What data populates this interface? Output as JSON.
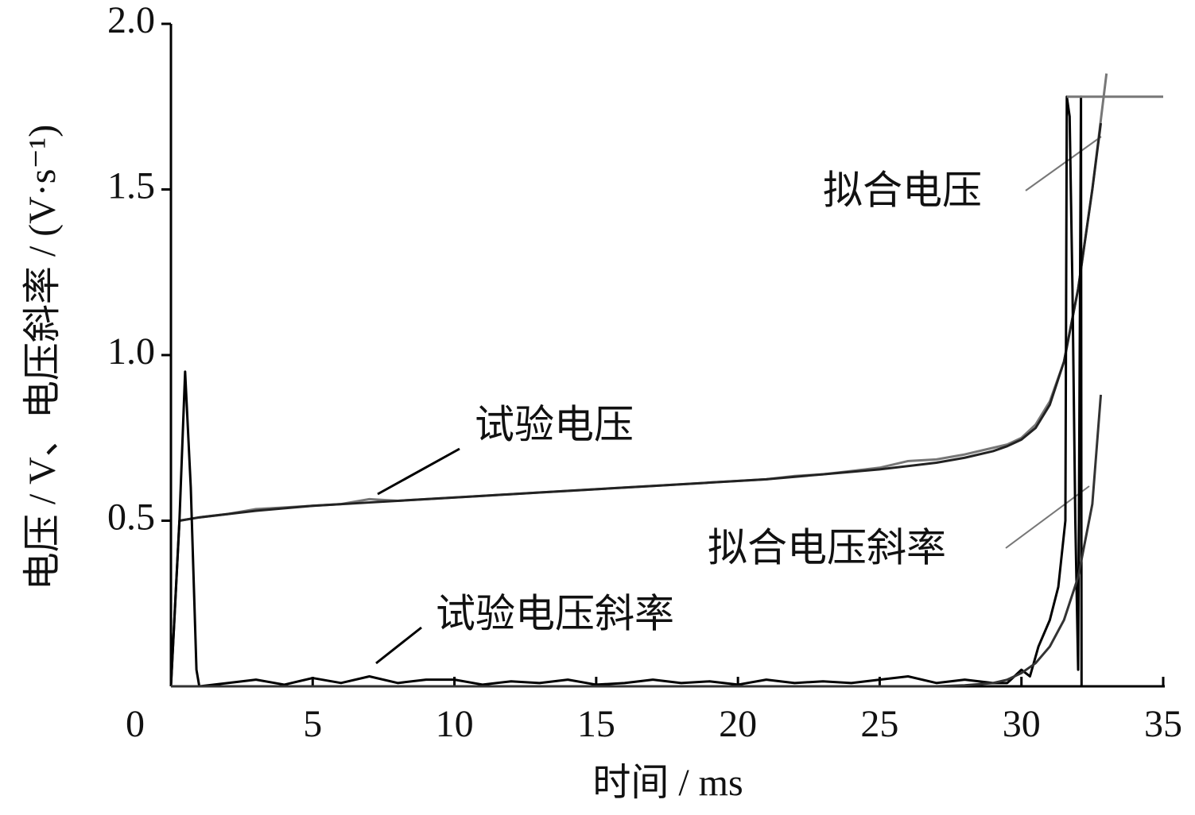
{
  "chart_data": {
    "type": "line",
    "xlabel": "时间 / ms",
    "ylabel": "电压 / V、电压斜率 / (V·s⁻¹)",
    "xlim": [
      0,
      35
    ],
    "ylim": [
      0,
      2
    ],
    "xticks": [
      0,
      5,
      10,
      15,
      20,
      25,
      30,
      35
    ],
    "yticks": [
      0.5,
      {
        "value": 1,
        "label": "1.0"
      },
      1.5,
      {
        "value": 2,
        "label": "2.0"
      }
    ],
    "series": [
      {
        "name": "试验电压",
        "color": "#777777",
        "x": [
          0.3,
          1,
          2,
          3,
          4,
          5,
          6,
          7,
          8,
          9,
          10,
          11,
          12,
          13,
          14,
          15,
          16,
          17,
          18,
          19,
          20,
          21,
          22,
          23,
          24,
          25,
          26,
          27,
          28,
          29,
          29.5,
          30,
          30.5,
          31,
          31.5,
          32,
          32.5,
          33
        ],
        "values": [
          0.5,
          0.51,
          0.52,
          0.535,
          0.54,
          0.545,
          0.55,
          0.565,
          0.56,
          0.565,
          0.57,
          0.575,
          0.58,
          0.585,
          0.59,
          0.595,
          0.6,
          0.605,
          0.61,
          0.615,
          0.62,
          0.625,
          0.635,
          0.64,
          0.65,
          0.66,
          0.68,
          0.685,
          0.7,
          0.72,
          0.73,
          0.75,
          0.79,
          0.86,
          0.98,
          1.2,
          1.5,
          1.85
        ]
      },
      {
        "name": "拟合电压",
        "color": "#222222",
        "x": [
          0,
          0.3,
          1,
          3,
          5,
          7,
          9,
          11,
          13,
          15,
          17,
          19,
          21,
          23,
          25,
          27,
          28,
          29,
          29.5,
          30,
          30.5,
          31,
          31.5,
          32,
          32.5,
          32.8
        ],
        "values": [
          0,
          0.5,
          0.51,
          0.53,
          0.545,
          0.555,
          0.565,
          0.575,
          0.585,
          0.595,
          0.605,
          0.615,
          0.625,
          0.64,
          0.655,
          0.675,
          0.69,
          0.71,
          0.725,
          0.745,
          0.78,
          0.85,
          0.98,
          1.2,
          1.5,
          1.7
        ]
      },
      {
        "name": "试验电压斜率",
        "color": "#000000",
        "x": [
          0,
          0.3,
          0.5,
          0.7,
          0.9,
          1,
          2,
          3,
          4,
          5,
          6,
          7,
          8,
          9,
          10,
          11,
          12,
          13,
          14,
          15,
          16,
          17,
          18,
          19,
          20,
          21,
          22,
          23,
          24,
          25,
          26,
          27,
          28,
          29,
          29.5,
          30,
          30.3,
          30.6,
          31,
          31.3,
          31.55,
          31.6,
          31.7,
          31.8,
          31.9,
          32,
          32.1,
          32.12
        ],
        "values": [
          0,
          0.5,
          0.95,
          0.6,
          0.05,
          0,
          0.01,
          0.02,
          0.005,
          0.025,
          0.01,
          0.03,
          0.01,
          0.02,
          0.02,
          0.005,
          0.015,
          0.01,
          0.02,
          0.005,
          0.01,
          0.02,
          0.01,
          0.015,
          0.005,
          0.02,
          0.01,
          0.015,
          0.01,
          0.02,
          0.03,
          0.01,
          0.02,
          0.01,
          0.01,
          0.05,
          0.03,
          0.12,
          0.2,
          0.3,
          0.5,
          1.78,
          1.72,
          1.2,
          0.5,
          0.05,
          1.78,
          0
        ]
      },
      {
        "name": "拟合电压斜率",
        "color": "#333333",
        "x": [
          0,
          27,
          28,
          29,
          29.5,
          30,
          30.5,
          31,
          31.5,
          32,
          32.5,
          32.8
        ],
        "values": [
          0,
          0,
          0.003,
          0.01,
          0.02,
          0.04,
          0.07,
          0.12,
          0.2,
          0.33,
          0.55,
          0.88
        ]
      },
      {
        "color": "#777777",
        "x": [
          31.6,
          35
        ],
        "values": [
          1.78,
          1.78
        ]
      }
    ]
  }
}
